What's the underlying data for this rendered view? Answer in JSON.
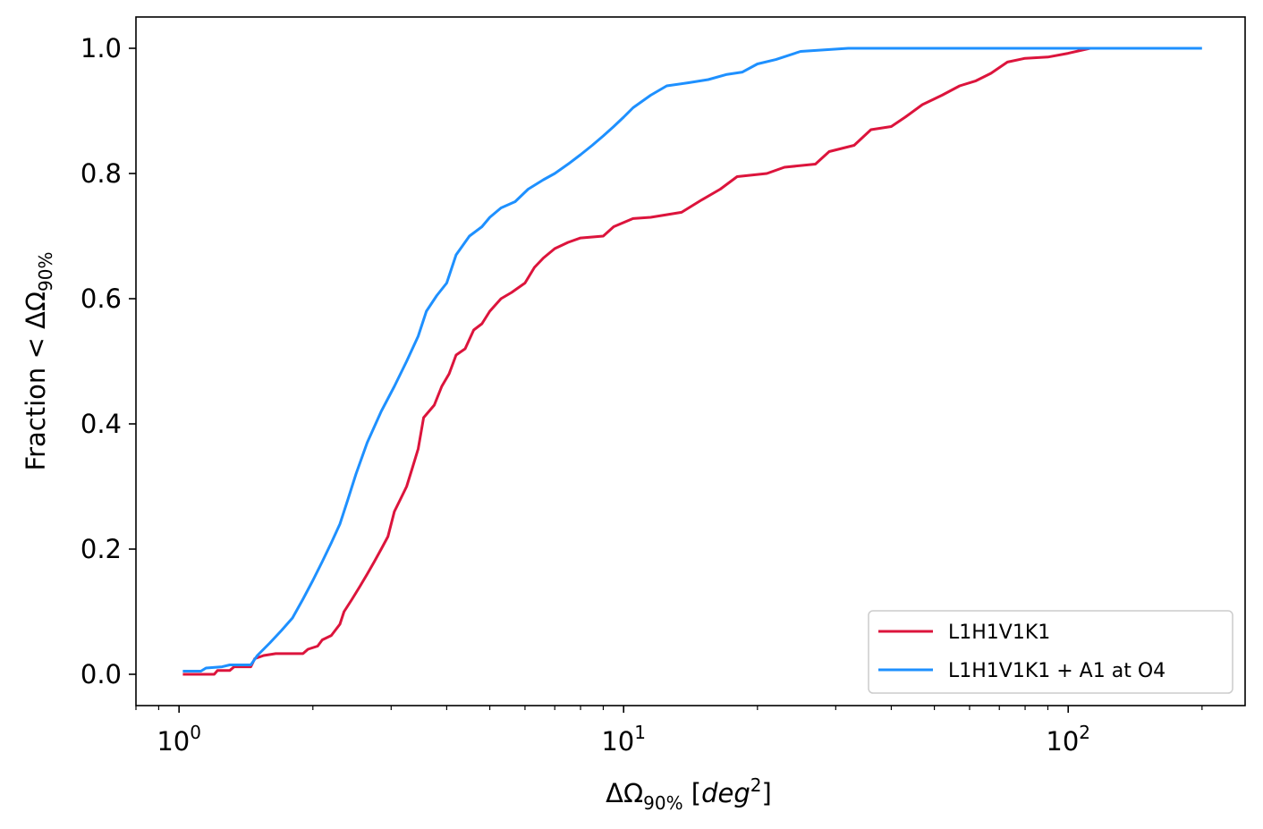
{
  "chart_data": {
    "type": "line",
    "x_scale": "log",
    "xlim": [
      0.8,
      250
    ],
    "ylim": [
      -0.05,
      1.05
    ],
    "ylabel_parts": [
      "Fraction < ΔΩ",
      "90%"
    ],
    "xlabel_parts": [
      "ΔΩ",
      "90%",
      " [",
      "deg",
      "2",
      "]"
    ],
    "x_ticks": [
      {
        "value": 1,
        "base": "10",
        "exp": "0"
      },
      {
        "value": 10,
        "base": "10",
        "exp": "1"
      },
      {
        "value": 100,
        "base": "10",
        "exp": "2"
      }
    ],
    "y_ticks": [
      "0.0",
      "0.2",
      "0.4",
      "0.6",
      "0.8",
      "1.0"
    ],
    "legend_position": "lower-right",
    "series": [
      {
        "name": "L1H1V1K1",
        "color": "#dc143c",
        "points": [
          [
            1.02,
            0.0
          ],
          [
            1.2,
            0.0
          ],
          [
            1.22,
            0.006
          ],
          [
            1.3,
            0.006
          ],
          [
            1.33,
            0.012
          ],
          [
            1.45,
            0.012
          ],
          [
            1.48,
            0.025
          ],
          [
            1.55,
            0.03
          ],
          [
            1.65,
            0.033
          ],
          [
            1.75,
            0.033
          ],
          [
            1.9,
            0.033
          ],
          [
            1.95,
            0.04
          ],
          [
            2.05,
            0.045
          ],
          [
            2.1,
            0.055
          ],
          [
            2.2,
            0.062
          ],
          [
            2.3,
            0.08
          ],
          [
            2.35,
            0.1
          ],
          [
            2.45,
            0.12
          ],
          [
            2.55,
            0.14
          ],
          [
            2.65,
            0.16
          ],
          [
            2.75,
            0.18
          ],
          [
            2.85,
            0.2
          ],
          [
            2.95,
            0.22
          ],
          [
            3.05,
            0.26
          ],
          [
            3.15,
            0.28
          ],
          [
            3.25,
            0.3
          ],
          [
            3.35,
            0.33
          ],
          [
            3.45,
            0.36
          ],
          [
            3.55,
            0.41
          ],
          [
            3.75,
            0.43
          ],
          [
            3.9,
            0.46
          ],
          [
            4.05,
            0.48
          ],
          [
            4.2,
            0.51
          ],
          [
            4.4,
            0.52
          ],
          [
            4.6,
            0.55
          ],
          [
            4.8,
            0.56
          ],
          [
            5.0,
            0.58
          ],
          [
            5.3,
            0.6
          ],
          [
            5.6,
            0.61
          ],
          [
            6.0,
            0.625
          ],
          [
            6.3,
            0.65
          ],
          [
            6.6,
            0.665
          ],
          [
            7.0,
            0.68
          ],
          [
            7.5,
            0.69
          ],
          [
            8.0,
            0.697
          ],
          [
            9.0,
            0.7
          ],
          [
            9.5,
            0.715
          ],
          [
            10.5,
            0.728
          ],
          [
            11.5,
            0.73
          ],
          [
            13.5,
            0.738
          ],
          [
            15.0,
            0.758
          ],
          [
            16.5,
            0.775
          ],
          [
            18.0,
            0.795
          ],
          [
            21.0,
            0.8
          ],
          [
            23.0,
            0.81
          ],
          [
            27.0,
            0.815
          ],
          [
            29.0,
            0.835
          ],
          [
            33.0,
            0.845
          ],
          [
            36.0,
            0.87
          ],
          [
            40.0,
            0.875
          ],
          [
            43.0,
            0.89
          ],
          [
            47.0,
            0.91
          ],
          [
            52.0,
            0.925
          ],
          [
            57.0,
            0.94
          ],
          [
            62.0,
            0.948
          ],
          [
            67.0,
            0.96
          ],
          [
            73.0,
            0.978
          ],
          [
            80.0,
            0.984
          ],
          [
            90.0,
            0.986
          ],
          [
            100.0,
            0.992
          ],
          [
            112.0,
            1.0
          ]
        ]
      },
      {
        "name": "L1H1V1K1 + A1 at O4",
        "color": "#1e90ff",
        "points": [
          [
            1.02,
            0.005
          ],
          [
            1.12,
            0.005
          ],
          [
            1.15,
            0.01
          ],
          [
            1.25,
            0.012
          ],
          [
            1.3,
            0.015
          ],
          [
            1.45,
            0.015
          ],
          [
            1.5,
            0.03
          ],
          [
            1.6,
            0.05
          ],
          [
            1.7,
            0.07
          ],
          [
            1.8,
            0.09
          ],
          [
            1.9,
            0.12
          ],
          [
            2.0,
            0.15
          ],
          [
            2.1,
            0.18
          ],
          [
            2.2,
            0.21
          ],
          [
            2.3,
            0.24
          ],
          [
            2.4,
            0.28
          ],
          [
            2.5,
            0.32
          ],
          [
            2.65,
            0.37
          ],
          [
            2.85,
            0.42
          ],
          [
            3.05,
            0.46
          ],
          [
            3.25,
            0.5
          ],
          [
            3.45,
            0.54
          ],
          [
            3.6,
            0.58
          ],
          [
            3.8,
            0.605
          ],
          [
            4.0,
            0.625
          ],
          [
            4.2,
            0.67
          ],
          [
            4.5,
            0.7
          ],
          [
            4.8,
            0.715
          ],
          [
            5.0,
            0.73
          ],
          [
            5.3,
            0.745
          ],
          [
            5.7,
            0.755
          ],
          [
            6.1,
            0.775
          ],
          [
            6.6,
            0.79
          ],
          [
            7.0,
            0.8
          ],
          [
            7.5,
            0.815
          ],
          [
            8.0,
            0.83
          ],
          [
            8.5,
            0.845
          ],
          [
            9.0,
            0.86
          ],
          [
            9.5,
            0.875
          ],
          [
            10.0,
            0.89
          ],
          [
            10.5,
            0.905
          ],
          [
            11.5,
            0.925
          ],
          [
            12.5,
            0.94
          ],
          [
            14.0,
            0.945
          ],
          [
            15.5,
            0.95
          ],
          [
            17.0,
            0.958
          ],
          [
            18.5,
            0.962
          ],
          [
            20.0,
            0.975
          ],
          [
            22.0,
            0.982
          ],
          [
            25.0,
            0.995
          ],
          [
            32.0,
            1.0
          ],
          [
            200.0,
            1.0
          ]
        ]
      }
    ]
  }
}
